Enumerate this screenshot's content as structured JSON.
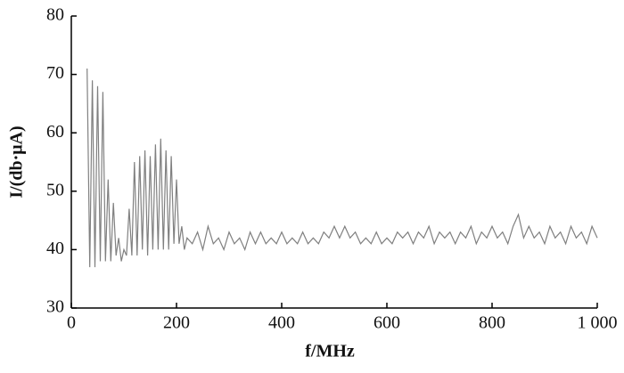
{
  "chart_data": {
    "type": "line",
    "x_label": "f/MHz",
    "y_label": "I/(db·μA)",
    "x": [
      30,
      35,
      40,
      45,
      50,
      55,
      60,
      65,
      70,
      75,
      80,
      85,
      90,
      95,
      100,
      105,
      110,
      115,
      120,
      125,
      130,
      135,
      140,
      145,
      150,
      155,
      160,
      165,
      170,
      175,
      180,
      185,
      190,
      195,
      200,
      205,
      210,
      215,
      220,
      230,
      240,
      250,
      260,
      270,
      280,
      290,
      300,
      310,
      320,
      330,
      340,
      350,
      360,
      370,
      380,
      390,
      400,
      410,
      420,
      430,
      440,
      450,
      460,
      470,
      480,
      490,
      500,
      510,
      520,
      530,
      540,
      550,
      560,
      570,
      580,
      590,
      600,
      610,
      620,
      630,
      640,
      650,
      660,
      670,
      680,
      690,
      700,
      710,
      720,
      730,
      740,
      750,
      760,
      770,
      780,
      790,
      800,
      810,
      820,
      830,
      840,
      850,
      860,
      870,
      880,
      890,
      900,
      910,
      920,
      930,
      940,
      950,
      960,
      970,
      980,
      990,
      1000
    ],
    "series": [
      {
        "color": "#808080",
        "values": [
          71,
          37,
          69,
          37,
          68,
          38,
          67,
          38,
          52,
          38,
          48,
          39,
          42,
          38,
          40,
          39,
          47,
          39,
          55,
          39,
          56,
          40,
          57,
          39,
          56,
          40,
          58,
          40,
          59,
          40,
          57,
          40,
          56,
          41,
          52,
          41,
          44,
          40,
          42,
          41,
          43,
          40,
          44,
          41,
          42,
          40,
          43,
          41,
          42,
          40,
          43,
          41,
          43,
          41,
          42,
          41,
          43,
          41,
          42,
          41,
          43,
          41,
          42,
          41,
          43,
          42,
          44,
          42,
          44,
          42,
          43,
          41,
          42,
          41,
          43,
          41,
          42,
          41,
          43,
          42,
          43,
          41,
          43,
          42,
          44,
          41,
          43,
          42,
          43,
          41,
          43,
          42,
          44,
          41,
          43,
          42,
          44,
          42,
          43,
          41,
          44,
          46,
          42,
          44,
          42,
          43,
          41,
          44,
          42,
          43,
          41,
          44,
          42,
          43,
          41,
          44,
          42
        ]
      }
    ],
    "xlim": [
      0,
      1000
    ],
    "ylim": [
      30,
      80
    ],
    "xticks": [
      0,
      200,
      400,
      600,
      800,
      {
        "value": 1000,
        "label": "1 000"
      }
    ],
    "yticks": [
      30,
      40,
      50,
      60,
      70,
      80
    ]
  }
}
